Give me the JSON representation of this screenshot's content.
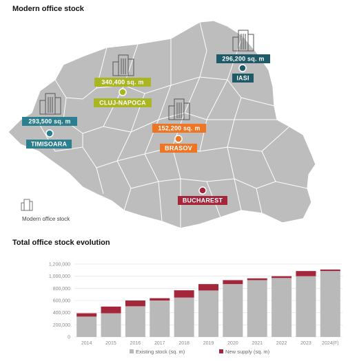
{
  "map_section": {
    "title": "Modern office stock",
    "legend_label": "Modern office stock",
    "colors": {
      "map_fill": "#bdbdbd",
      "map_border": "#ffffff",
      "icon": "#555555"
    },
    "cities": [
      {
        "name": "IASI",
        "stock": "296,200 sq. m",
        "color": "#1f5a68"
      },
      {
        "name": "CLUJ-NAPOCA",
        "stock": "340,400 sq. m",
        "color": "#a9b521"
      },
      {
        "name": "TIMISOARA",
        "stock": "293,500 sq. m",
        "color": "#2b7f8e"
      },
      {
        "name": "BRASOV",
        "stock": "152,200 sq. m",
        "color": "#ee7523"
      },
      {
        "name": "BUCHAREST",
        "stock": "",
        "color": "#a4263a"
      }
    ]
  },
  "chart_section": {
    "title": "Total office stock evolution"
  },
  "chart_data": {
    "type": "bar",
    "stacked": true,
    "categories": [
      "2014",
      "2015",
      "2016",
      "2017",
      "2018",
      "2019",
      "2020",
      "2021",
      "2022",
      "2023",
      "2024(F)"
    ],
    "series": [
      {
        "name": "Existing stock (sq. m)",
        "color": "#b9b9b9",
        "values": [
          335000,
          390000,
          505000,
          600000,
          648000,
          765000,
          870000,
          935000,
          970000,
          1000000,
          1085000
        ]
      },
      {
        "name": "New supply (sq. m)",
        "color": "#a4263a",
        "values": [
          55000,
          110000,
          95000,
          38000,
          120000,
          105000,
          65000,
          30000,
          30000,
          85000,
          25000
        ]
      }
    ],
    "yticks": [
      "0",
      "200,000",
      "400,000",
      "600,000",
      "800,000",
      "1,000,000",
      "1,200,000"
    ],
    "ylim": [
      0,
      1200000
    ],
    "grid": true,
    "legend": "bottom"
  }
}
